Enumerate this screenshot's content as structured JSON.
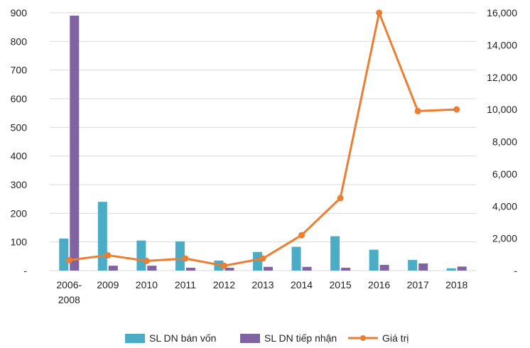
{
  "chart_data": {
    "type": "bar",
    "title": "",
    "xlabel": "",
    "ylabel": "",
    "categories": [
      "2006-2008",
      "2009",
      "2010",
      "2011",
      "2012",
      "2013",
      "2014",
      "2015",
      "2016",
      "2017",
      "2018"
    ],
    "category_lines": [
      [
        "2006-",
        "2008"
      ],
      [
        "2009"
      ],
      [
        "2010"
      ],
      [
        "2011"
      ],
      [
        "2012"
      ],
      [
        "2013"
      ],
      [
        "2014"
      ],
      [
        "2015"
      ],
      [
        "2016"
      ],
      [
        "2017"
      ],
      [
        "2018"
      ]
    ],
    "ylim": [
      0,
      900
    ],
    "y_ticks": [
      0,
      100,
      200,
      300,
      400,
      500,
      600,
      700,
      800,
      900
    ],
    "y_tick_labels": [
      "-",
      "100",
      "200",
      "300",
      "400",
      "500",
      "600",
      "700",
      "800",
      "900"
    ],
    "y2lim": [
      0,
      16000
    ],
    "y2_ticks": [
      0,
      2000,
      4000,
      6000,
      8000,
      10000,
      12000,
      14000,
      16000
    ],
    "y2_tick_labels": [
      "-",
      "2,000",
      "4,000",
      "6,000",
      "8,000",
      "10,000",
      "12,000",
      "14,000",
      "16,000"
    ],
    "grid": true,
    "legend_position": "bottom",
    "series": [
      {
        "name": "SL DN bán vốn",
        "kind": "bar",
        "axis": "left",
        "color": "#4bacc6",
        "values": [
          112,
          240,
          105,
          102,
          35,
          65,
          83,
          120,
          73,
          37,
          8
        ]
      },
      {
        "name": "SL DN tiếp nhận",
        "kind": "bar",
        "axis": "left",
        "color": "#8064a2",
        "values": [
          890,
          17,
          17,
          10,
          10,
          13,
          13,
          10,
          20,
          25,
          14
        ]
      },
      {
        "name": "Giá trị",
        "kind": "line",
        "axis": "right",
        "color": "#ed7d31",
        "values": [
          650,
          950,
          600,
          750,
          300,
          750,
          2200,
          4500,
          16000,
          9900,
          10000
        ]
      }
    ]
  }
}
